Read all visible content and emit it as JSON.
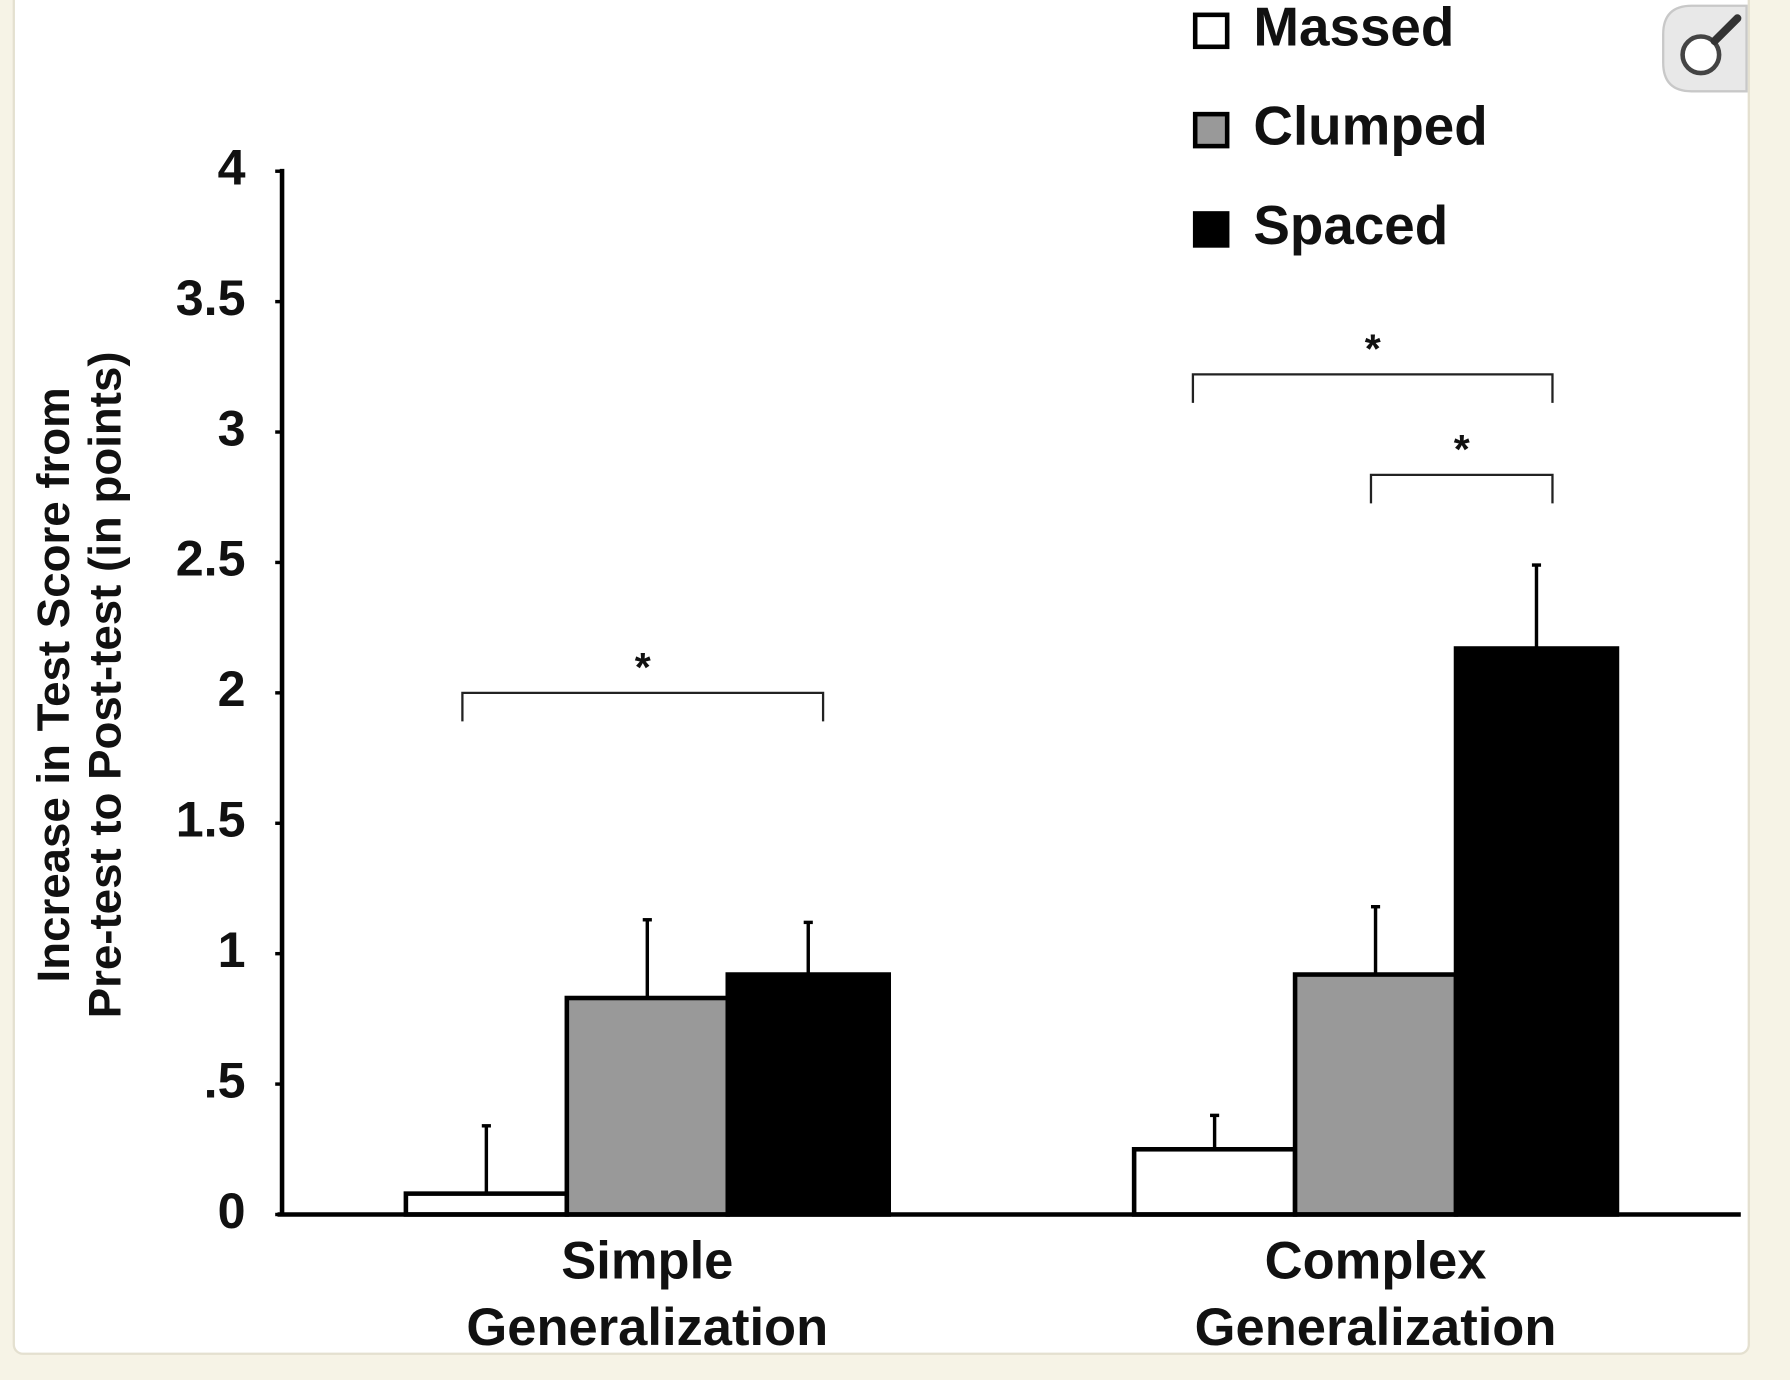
{
  "chart_data": {
    "type": "bar",
    "y_label": [
      "Increase in Test Score from",
      "Pre-test to Post-test (in points)"
    ],
    "categories": [
      "Simple Generalization",
      "Complex Generalization"
    ],
    "series": [
      {
        "name": "Massed",
        "color": "#ffffff",
        "values": [
          0.08,
          0.25
        ],
        "errors": [
          0.26,
          0.13
        ]
      },
      {
        "name": "Clumped",
        "color": "#999999",
        "values": [
          0.83,
          0.92
        ],
        "errors": [
          0.3,
          0.26
        ]
      },
      {
        "name": "Spaced",
        "color": "#000000",
        "values": [
          0.92,
          2.17
        ],
        "errors": [
          0.2,
          0.32
        ]
      }
    ],
    "ylim": [
      0,
      4
    ],
    "yticks": [
      0,
      {
        "value": 0.5,
        "label": ".5"
      },
      1,
      1.5,
      2,
      2.5,
      3,
      3.5,
      4
    ],
    "annotations": [
      "*",
      "*",
      "*"
    ],
    "grid": false
  }
}
